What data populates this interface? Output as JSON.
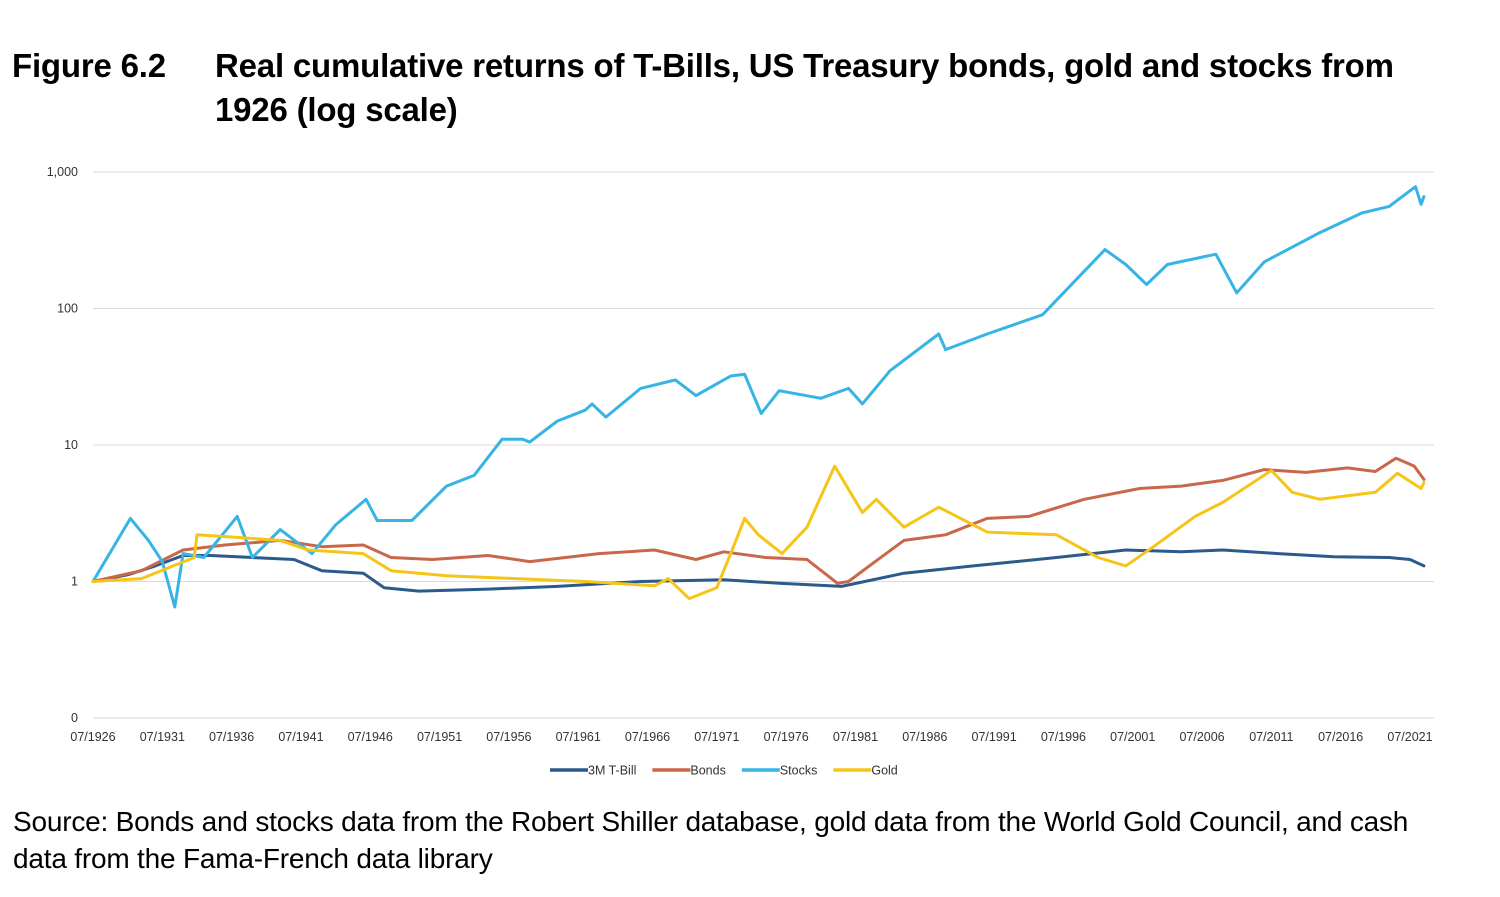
{
  "figure": {
    "label": "Figure 6.2",
    "title": "Real cumulative returns of T-Bills, US Treasury bonds, gold and stocks from 1926 (log scale)"
  },
  "source": "Source: Bonds and stocks data from the Robert Shiller database, gold data from the World Gold Council, and cash data from the Fama-French data library",
  "chart_data": {
    "type": "line",
    "title": "Real cumulative returns of T-Bills, US Treasury bonds, gold and stocks from 1926 (log scale)",
    "xlabel": "",
    "ylabel": "",
    "yscale": "log",
    "ylim": [
      0.1,
      1000
    ],
    "xlim": [
      1926.5,
      2022.5
    ],
    "y_ticks": [
      {
        "value": 0.1,
        "label": "0"
      },
      {
        "value": 1,
        "label": "1"
      },
      {
        "value": 10,
        "label": "10"
      },
      {
        "value": 100,
        "label": "100"
      },
      {
        "value": 1000,
        "label": "1,000"
      }
    ],
    "x_ticks": [
      {
        "value": 1926.5,
        "label": "07/1926"
      },
      {
        "value": 1931.5,
        "label": "07/1931"
      },
      {
        "value": 1936.5,
        "label": "07/1936"
      },
      {
        "value": 1941.5,
        "label": "07/1941"
      },
      {
        "value": 1946.5,
        "label": "07/1946"
      },
      {
        "value": 1951.5,
        "label": "07/1951"
      },
      {
        "value": 1956.5,
        "label": "07/1956"
      },
      {
        "value": 1961.5,
        "label": "07/1961"
      },
      {
        "value": 1966.5,
        "label": "07/1966"
      },
      {
        "value": 1971.5,
        "label": "07/1971"
      },
      {
        "value": 1976.5,
        "label": "07/1976"
      },
      {
        "value": 1981.5,
        "label": "07/1981"
      },
      {
        "value": 1986.5,
        "label": "07/1986"
      },
      {
        "value": 1991.5,
        "label": "07/1991"
      },
      {
        "value": 1996.5,
        "label": "07/1996"
      },
      {
        "value": 2001.5,
        "label": "07/2001"
      },
      {
        "value": 2006.5,
        "label": "07/2006"
      },
      {
        "value": 2011.5,
        "label": "07/2011"
      },
      {
        "value": 2016.5,
        "label": "07/2016"
      },
      {
        "value": 2021.5,
        "label": "07/2021"
      }
    ],
    "grid": true,
    "legend_position": "bottom",
    "series": [
      {
        "name": "3M T-Bill",
        "color": "#2c5a8c",
        "points": [
          [
            1926.5,
            1.0
          ],
          [
            1929,
            1.12
          ],
          [
            1931,
            1.3
          ],
          [
            1933,
            1.55
          ],
          [
            1935,
            1.55
          ],
          [
            1938,
            1.5
          ],
          [
            1941,
            1.45
          ],
          [
            1943,
            1.2
          ],
          [
            1946,
            1.15
          ],
          [
            1947.5,
            0.9
          ],
          [
            1950,
            0.85
          ],
          [
            1955,
            0.88
          ],
          [
            1960,
            0.92
          ],
          [
            1966,
            1.0
          ],
          [
            1972,
            1.03
          ],
          [
            1976,
            0.97
          ],
          [
            1980.5,
            0.92
          ],
          [
            1985,
            1.15
          ],
          [
            1990,
            1.3
          ],
          [
            1996,
            1.5
          ],
          [
            2001,
            1.7
          ],
          [
            2005,
            1.65
          ],
          [
            2008,
            1.7
          ],
          [
            2012,
            1.6
          ],
          [
            2016,
            1.52
          ],
          [
            2020,
            1.5
          ],
          [
            2021.5,
            1.45
          ],
          [
            2022.5,
            1.3
          ]
        ]
      },
      {
        "name": "Bonds",
        "color": "#c9674a",
        "points": [
          [
            1926.5,
            1.0
          ],
          [
            1930,
            1.2
          ],
          [
            1933,
            1.7
          ],
          [
            1936,
            1.85
          ],
          [
            1940,
            2.0
          ],
          [
            1943,
            1.8
          ],
          [
            1946,
            1.85
          ],
          [
            1948,
            1.5
          ],
          [
            1951,
            1.45
          ],
          [
            1955,
            1.55
          ],
          [
            1958,
            1.4
          ],
          [
            1963,
            1.6
          ],
          [
            1967,
            1.7
          ],
          [
            1970,
            1.45
          ],
          [
            1972,
            1.65
          ],
          [
            1975,
            1.5
          ],
          [
            1978,
            1.45
          ],
          [
            1980.2,
            0.97
          ],
          [
            1981,
            1.0
          ],
          [
            1982.5,
            1.3
          ],
          [
            1985,
            2.0
          ],
          [
            1988,
            2.2
          ],
          [
            1991,
            2.9
          ],
          [
            1994,
            3.0
          ],
          [
            1998,
            4.0
          ],
          [
            2002,
            4.8
          ],
          [
            2005,
            5.0
          ],
          [
            2008,
            5.5
          ],
          [
            2011,
            6.6
          ],
          [
            2014,
            6.3
          ],
          [
            2017,
            6.8
          ],
          [
            2019,
            6.4
          ],
          [
            2020.5,
            8.0
          ],
          [
            2021.8,
            7.0
          ],
          [
            2022.5,
            5.6
          ]
        ]
      },
      {
        "name": "Stocks",
        "color": "#36b4e5",
        "points": [
          [
            1926.5,
            1.0
          ],
          [
            1929.2,
            2.9
          ],
          [
            1930.5,
            2.0
          ],
          [
            1931.5,
            1.4
          ],
          [
            1932.4,
            0.65
          ],
          [
            1933,
            1.6
          ],
          [
            1934.5,
            1.5
          ],
          [
            1936.9,
            3.0
          ],
          [
            1938,
            1.5
          ],
          [
            1940,
            2.4
          ],
          [
            1942.3,
            1.6
          ],
          [
            1944,
            2.6
          ],
          [
            1946.2,
            4.0
          ],
          [
            1947,
            2.8
          ],
          [
            1949.5,
            2.8
          ],
          [
            1952,
            5.0
          ],
          [
            1954,
            6.0
          ],
          [
            1956,
            11
          ],
          [
            1957.5,
            11
          ],
          [
            1958,
            10.5
          ],
          [
            1960,
            15
          ],
          [
            1962,
            18
          ],
          [
            1962.5,
            20
          ],
          [
            1963.5,
            16
          ],
          [
            1966,
            26
          ],
          [
            1968.5,
            30
          ],
          [
            1970,
            23
          ],
          [
            1972.5,
            32
          ],
          [
            1973.5,
            33
          ],
          [
            1974.7,
            17
          ],
          [
            1976,
            25
          ],
          [
            1979,
            22
          ],
          [
            1981,
            26
          ],
          [
            1982,
            20
          ],
          [
            1984,
            35
          ],
          [
            1987.5,
            65
          ],
          [
            1988,
            50
          ],
          [
            1991,
            65
          ],
          [
            1995,
            90
          ],
          [
            1999.5,
            270
          ],
          [
            2001,
            210
          ],
          [
            2002.5,
            150
          ],
          [
            2004,
            210
          ],
          [
            2007.5,
            250
          ],
          [
            2009,
            130
          ],
          [
            2011,
            220
          ],
          [
            2015,
            360
          ],
          [
            2018,
            500
          ],
          [
            2020,
            560
          ],
          [
            2021.9,
            780
          ],
          [
            2022.3,
            580
          ],
          [
            2022.5,
            660
          ]
        ]
      },
      {
        "name": "Gold",
        "color": "#f5c518",
        "points": [
          [
            1926.5,
            1.0
          ],
          [
            1930,
            1.05
          ],
          [
            1933.8,
            1.5
          ],
          [
            1934,
            2.2
          ],
          [
            1937,
            2.1
          ],
          [
            1940,
            2.0
          ],
          [
            1942,
            1.7
          ],
          [
            1946,
            1.6
          ],
          [
            1948,
            1.2
          ],
          [
            1952,
            1.1
          ],
          [
            1957,
            1.05
          ],
          [
            1962,
            1.0
          ],
          [
            1967,
            0.93
          ],
          [
            1968,
            1.05
          ],
          [
            1969.5,
            0.75
          ],
          [
            1971.5,
            0.9
          ],
          [
            1972.5,
            1.6
          ],
          [
            1973.5,
            2.9
          ],
          [
            1974.5,
            2.2
          ],
          [
            1976.2,
            1.6
          ],
          [
            1978,
            2.5
          ],
          [
            1980.0,
            7.0
          ],
          [
            1982,
            3.2
          ],
          [
            1983,
            4.0
          ],
          [
            1985,
            2.5
          ],
          [
            1987.5,
            3.5
          ],
          [
            1991,
            2.3
          ],
          [
            1996,
            2.2
          ],
          [
            1999,
            1.5
          ],
          [
            2001,
            1.3
          ],
          [
            2003,
            1.8
          ],
          [
            2006,
            3.0
          ],
          [
            2008,
            3.8
          ],
          [
            2011.5,
            6.5
          ],
          [
            2013,
            4.5
          ],
          [
            2015,
            4.0
          ],
          [
            2019,
            4.5
          ],
          [
            2020.6,
            6.2
          ],
          [
            2022.3,
            4.8
          ],
          [
            2022.5,
            5.3
          ]
        ]
      }
    ]
  }
}
